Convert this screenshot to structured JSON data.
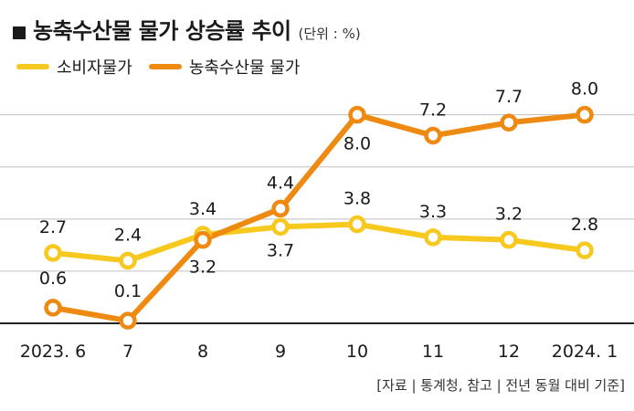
{
  "title": "농축수산물 물가 상승률 추이",
  "unit": "(단위 : %)",
  "source": "[자료 | 통계청, 참고 | 전년 동월 대비 기준]",
  "colors": {
    "consumer": "#F7C81E",
    "agri": "#EE8A12",
    "grid": "#bfbfbf",
    "axis": "#222222"
  },
  "chart_data": {
    "type": "line",
    "categories": [
      "2023. 6",
      "7",
      "8",
      "9",
      "10",
      "11",
      "12",
      "2024. 1"
    ],
    "series": [
      {
        "name": "소비자물가",
        "values": [
          2.7,
          2.4,
          3.4,
          3.7,
          3.8,
          3.3,
          3.2,
          2.8
        ],
        "labels": [
          "2.7",
          "2.4",
          "3.4",
          "3.7",
          "3.8",
          "3.3",
          "3.2",
          "2.8"
        ]
      },
      {
        "name": "농축수산물 물가",
        "values": [
          0.6,
          0.1,
          3.2,
          4.4,
          8.0,
          7.2,
          7.7,
          8.0
        ],
        "labels": [
          "0.6",
          "0.1",
          "3.2",
          "4.4",
          "8.0",
          "7.2",
          "7.7",
          "8.0"
        ]
      }
    ],
    "ylim": [
      0,
      8.9
    ],
    "grid": true,
    "legend_position": "top-left"
  }
}
